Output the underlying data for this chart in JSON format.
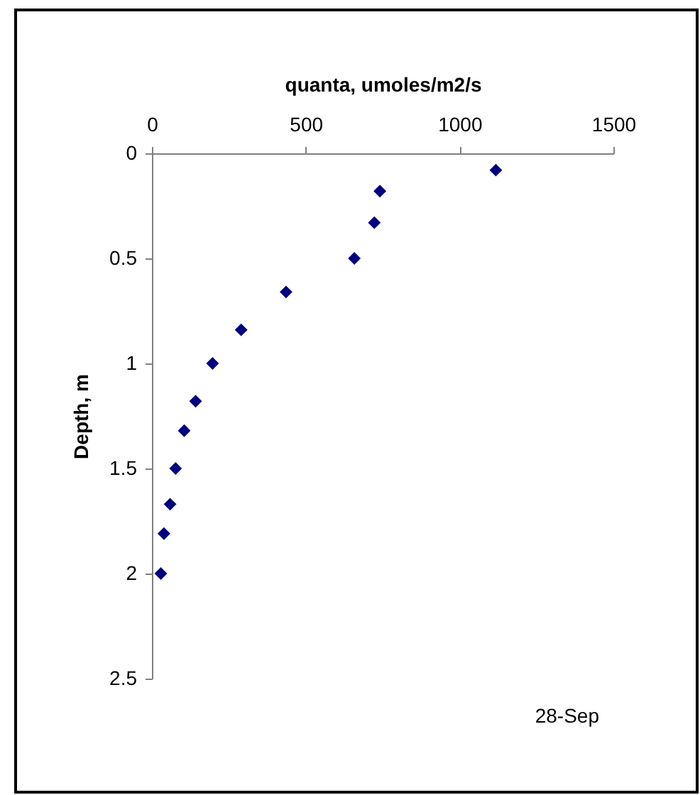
{
  "chart_data": {
    "type": "scatter",
    "xlabel": "quanta, umoles/m2/s",
    "ylabel": "Depth, m",
    "x": [
      1118,
      741,
      723,
      658,
      436,
      290,
      197,
      142,
      105,
      77,
      59,
      39,
      29
    ],
    "series": [
      {
        "color": "#000080",
        "values": [
          0.08,
          0.18,
          0.33,
          0.5,
          0.66,
          0.84,
          1.0,
          1.18,
          1.32,
          1.5,
          1.67,
          1.81,
          2.0
        ]
      }
    ],
    "xlim": [
      0,
      1500
    ],
    "xticks": [
      0,
      500,
      1000,
      1500
    ],
    "ylim": [
      2.5,
      0
    ],
    "yticks": [
      0,
      0.5,
      1,
      1.5,
      2,
      2.5
    ],
    "marker": "diamond",
    "grid": false,
    "annotations": [
      "28-Sep"
    ]
  }
}
